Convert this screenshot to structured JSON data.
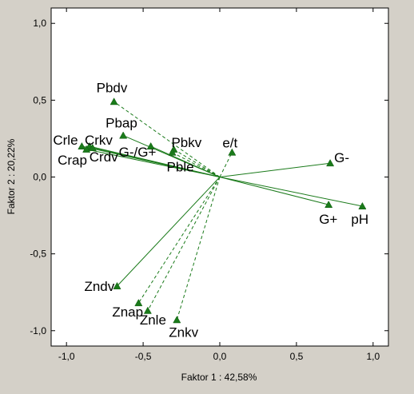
{
  "chart_data": {
    "type": "scatter",
    "title": "",
    "xlabel": "Faktor 1 : 42,58%",
    "ylabel": "Faktor 2 : 20,22%",
    "xlim": [
      -1.1,
      1.1
    ],
    "ylim": [
      -1.1,
      1.1
    ],
    "xticks": [
      -1.0,
      -0.5,
      0.0,
      0.5,
      1.0
    ],
    "yticks": [
      -1.0,
      -0.5,
      0.0,
      0.5,
      1.0
    ],
    "xtick_labels": [
      "-1,0",
      "-0,5",
      "0,0",
      "0,5",
      "1,0"
    ],
    "ytick_labels": [
      "-1,0",
      "-0,5",
      "0,0",
      "0,5",
      "1,0"
    ],
    "grid": false,
    "origin_vectors": true,
    "marker": "triangle",
    "points": [
      {
        "label": "Pbdv",
        "x": -0.69,
        "y": 0.49,
        "vector": "dashed"
      },
      {
        "label": "Pbap",
        "x": -0.63,
        "y": 0.27,
        "vector": "solid"
      },
      {
        "label": "Crle",
        "x": -0.9,
        "y": 0.2,
        "vector": "solid"
      },
      {
        "label": "Crkv",
        "x": -0.85,
        "y": 0.2,
        "vector": "solid"
      },
      {
        "label": "Crap",
        "x": -0.87,
        "y": 0.18,
        "vector": "solid"
      },
      {
        "label": "Crdv",
        "x": -0.83,
        "y": 0.19,
        "vector": "solid"
      },
      {
        "label": "G-/G+",
        "x": -0.45,
        "y": 0.2,
        "vector": "solid"
      },
      {
        "label": "Pbkv",
        "x": -0.3,
        "y": 0.18,
        "vector": "dashed"
      },
      {
        "label": "Pble",
        "x": -0.31,
        "y": 0.16,
        "vector": "dashed"
      },
      {
        "label": "e/t",
        "x": 0.08,
        "y": 0.16,
        "vector": "dashed"
      },
      {
        "label": "G-",
        "x": 0.72,
        "y": 0.09,
        "vector": "solid"
      },
      {
        "label": "G+",
        "x": 0.71,
        "y": -0.18,
        "vector": "solid"
      },
      {
        "label": "pH",
        "x": 0.93,
        "y": -0.19,
        "vector": "solid"
      },
      {
        "label": "Zndv",
        "x": -0.67,
        "y": -0.71,
        "vector": "solid"
      },
      {
        "label": "Znap",
        "x": -0.53,
        "y": -0.82,
        "vector": "dashed"
      },
      {
        "label": "Znle",
        "x": -0.47,
        "y": -0.87,
        "vector": "dashed"
      },
      {
        "label": "Znkv",
        "x": -0.28,
        "y": -0.93,
        "vector": "dashed"
      }
    ],
    "colors": {
      "background": "#d4d0c8",
      "plot_area": "#ffffff",
      "marker": "#1a7a1a",
      "vector": "#1a7a1a"
    }
  }
}
